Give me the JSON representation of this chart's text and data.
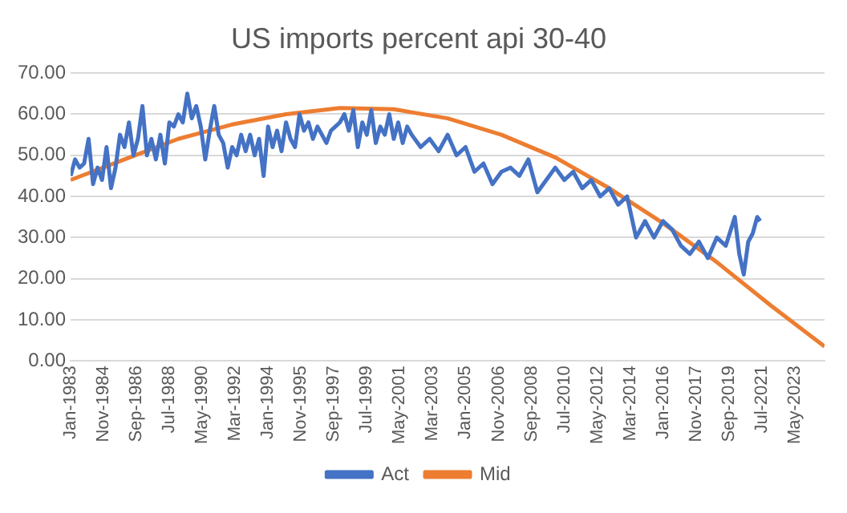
{
  "chart_data": {
    "type": "line",
    "title": "US imports percent api 30-40",
    "xlim": [
      "1983-01",
      "2025-01"
    ],
    "xticks": [
      {
        "value": "1983-01",
        "label": "Jan-1983"
      },
      {
        "value": "1984-11",
        "label": "Nov-1984"
      },
      {
        "value": "1986-09",
        "label": "Sep-1986"
      },
      {
        "value": "1988-07",
        "label": "Jul-1988"
      },
      {
        "value": "1990-05",
        "label": "May-1990"
      },
      {
        "value": "1992-03",
        "label": "Mar-1992"
      },
      {
        "value": "1994-01",
        "label": "Jan-1994"
      },
      {
        "value": "1995-11",
        "label": "Nov-1995"
      },
      {
        "value": "1997-09",
        "label": "Sep-1997"
      },
      {
        "value": "1999-07",
        "label": "Jul-1999"
      },
      {
        "value": "2001-05",
        "label": "May-2001"
      },
      {
        "value": "2003-03",
        "label": "Mar-2003"
      },
      {
        "value": "2005-01",
        "label": "Jan-2005"
      },
      {
        "value": "2006-11",
        "label": "Nov-2006"
      },
      {
        "value": "2008-09",
        "label": "Sep-2008"
      },
      {
        "value": "2010-07",
        "label": "Jul-2010"
      },
      {
        "value": "2012-05",
        "label": "May-2012"
      },
      {
        "value": "2014-03",
        "label": "Mar-2014"
      },
      {
        "value": "2016-01",
        "label": "Jan-2016"
      },
      {
        "value": "2017-11",
        "label": "Nov-2017"
      },
      {
        "value": "2019-09",
        "label": "Sep-2019"
      },
      {
        "value": "2021-07",
        "label": "Jul-2021"
      },
      {
        "value": "2023-05",
        "label": "May-2023"
      }
    ],
    "ylim": [
      0,
      70
    ],
    "yticks": [
      {
        "value": 0,
        "label": "0.00"
      },
      {
        "value": 10,
        "label": "10.00"
      },
      {
        "value": 20,
        "label": "20.00"
      },
      {
        "value": 30,
        "label": "30.00"
      },
      {
        "value": 40,
        "label": "40.00"
      },
      {
        "value": 50,
        "label": "50.00"
      },
      {
        "value": 60,
        "label": "60.00"
      },
      {
        "value": 70,
        "label": "70.00"
      }
    ],
    "grid": "y",
    "legend": "bottom",
    "marker": "none",
    "line_style": "solid",
    "series": [
      {
        "name": "Act",
        "color": "#4472c4",
        "x": [
          "1983-01",
          "1983-04",
          "1983-07",
          "1983-10",
          "1984-01",
          "1984-04",
          "1984-07",
          "1984-10",
          "1985-01",
          "1985-04",
          "1985-07",
          "1985-10",
          "1986-01",
          "1986-04",
          "1986-07",
          "1986-10",
          "1987-01",
          "1987-04",
          "1987-07",
          "1987-10",
          "1988-01",
          "1988-04",
          "1988-07",
          "1988-10",
          "1989-01",
          "1989-04",
          "1989-07",
          "1989-10",
          "1990-01",
          "1990-04",
          "1990-07",
          "1990-10",
          "1991-01",
          "1991-04",
          "1991-07",
          "1991-10",
          "1992-01",
          "1992-04",
          "1992-07",
          "1992-10",
          "1993-01",
          "1993-04",
          "1993-07",
          "1993-10",
          "1994-01",
          "1994-04",
          "1994-07",
          "1994-10",
          "1995-01",
          "1995-04",
          "1995-07",
          "1995-10",
          "1996-01",
          "1996-04",
          "1996-07",
          "1996-10",
          "1997-01",
          "1997-04",
          "1997-07",
          "1997-10",
          "1998-01",
          "1998-04",
          "1998-07",
          "1998-10",
          "1999-01",
          "1999-04",
          "1999-07",
          "1999-10",
          "2000-01",
          "2000-04",
          "2000-07",
          "2000-10",
          "2001-01",
          "2001-04",
          "2001-07",
          "2001-10",
          "2002-01",
          "2002-07",
          "2003-01",
          "2003-07",
          "2004-01",
          "2004-07",
          "2005-01",
          "2005-07",
          "2006-01",
          "2006-07",
          "2007-01",
          "2007-07",
          "2008-01",
          "2008-07",
          "2009-01",
          "2009-07",
          "2010-01",
          "2010-07",
          "2011-01",
          "2011-07",
          "2012-01",
          "2012-07",
          "2013-01",
          "2013-07",
          "2014-01",
          "2014-07",
          "2015-01",
          "2015-07",
          "2016-01",
          "2016-07",
          "2017-01",
          "2017-07",
          "2018-01",
          "2018-07",
          "2019-01",
          "2019-07",
          "2020-01",
          "2020-04",
          "2020-07",
          "2020-10",
          "2021-01",
          "2021-04",
          "2021-06"
        ],
        "values": [
          45,
          49,
          47,
          48,
          54,
          43,
          47,
          44,
          52,
          42,
          47,
          55,
          52,
          58,
          50,
          54,
          62,
          50,
          54,
          49,
          55,
          48,
          58,
          57,
          60,
          58,
          65,
          59,
          62,
          57,
          49,
          56,
          62,
          55,
          53,
          47,
          52,
          50,
          55,
          51,
          55,
          50,
          54,
          45,
          57,
          52,
          56,
          51,
          58,
          54,
          52,
          60,
          56,
          58,
          54,
          57,
          55,
          53,
          56,
          57,
          58,
          60,
          56,
          61,
          52,
          58,
          55,
          61,
          53,
          57,
          55,
          60,
          54,
          58,
          53,
          57,
          55,
          52,
          54,
          51,
          55,
          50,
          52,
          46,
          48,
          43,
          46,
          47,
          45,
          49,
          41,
          44,
          47,
          44,
          46,
          42,
          44,
          40,
          42,
          38,
          40,
          30,
          34,
          30,
          34,
          32,
          28,
          26,
          29,
          25,
          30,
          28,
          35,
          26,
          21,
          29,
          31,
          35,
          34
        ]
      },
      {
        "name": "Mid",
        "color": "#ed7d31",
        "x": [
          "1983-01",
          "1986-01",
          "1989-01",
          "1992-01",
          "1995-01",
          "1998-01",
          "2001-01",
          "2004-01",
          "2007-01",
          "2010-01",
          "2013-01",
          "2016-01",
          "2019-01",
          "2022-01",
          "2025-01"
        ],
        "values": [
          44,
          49,
          54,
          57.5,
          60,
          61.5,
          61.2,
          59,
          55,
          49.5,
          42,
          33.5,
          24,
          13.5,
          3.5
        ]
      }
    ]
  }
}
